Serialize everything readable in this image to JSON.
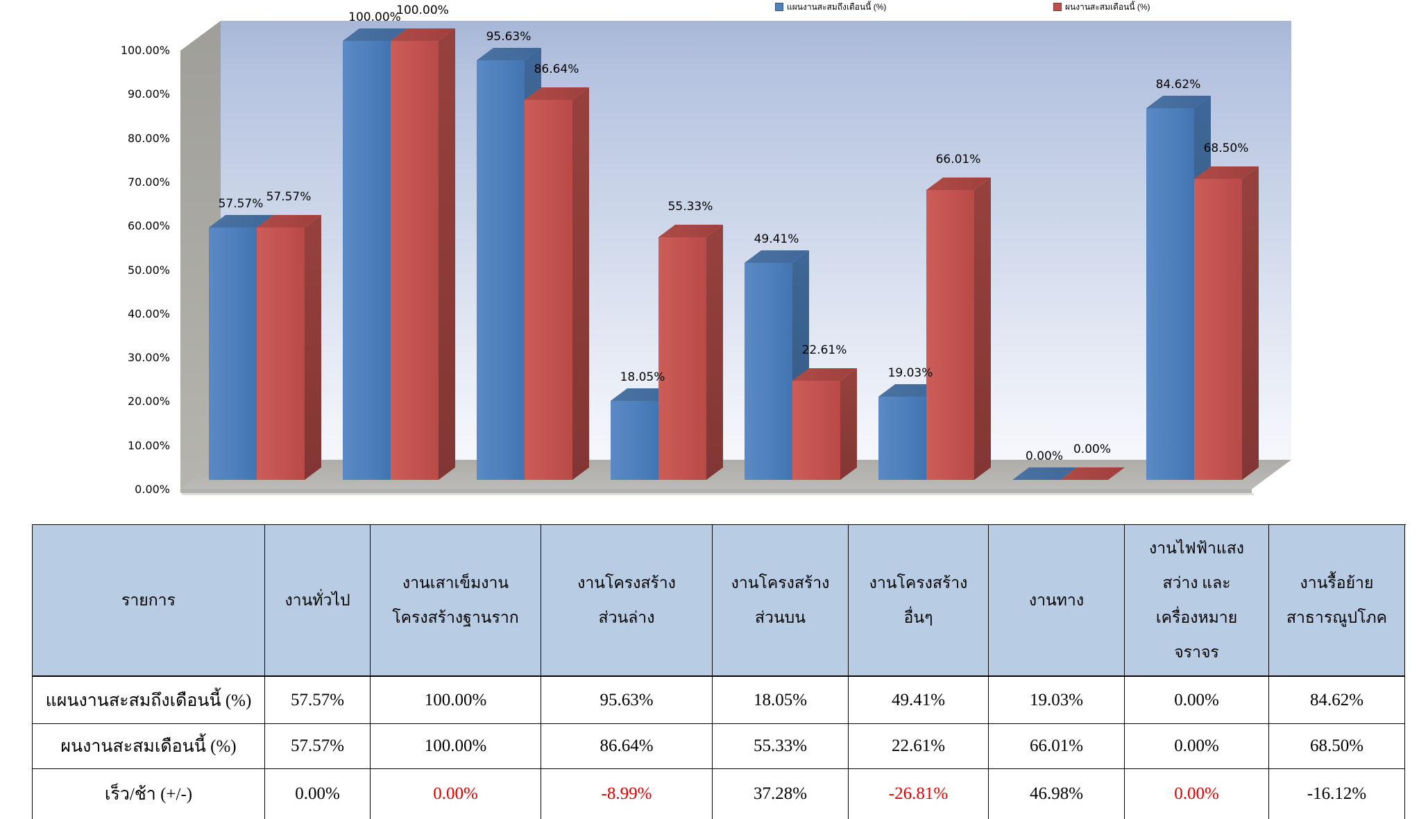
{
  "legend": {
    "items": [
      {
        "label": "แผนงานสะสมถึงเดือนนี้ (%)",
        "color": "#4f81bd"
      },
      {
        "label": "ผนงานสะสมเดือนนี้ (%)",
        "color": "#c0504d"
      }
    ]
  },
  "chart_data": {
    "type": "bar",
    "style": "3d-clustered-column",
    "title": "",
    "categories": [
      "งานทั่วไป",
      "งานเสาเข็มงานโครงสร้างฐานราก",
      "งานโครงสร้างส่วนล่าง",
      "งานโครงสร้างส่วนบน",
      "งานโครงสร้างอื่นๆ",
      "งานทาง",
      "งานไฟฟ้าแสงสว่าง และเครื่องหมายจราจร",
      "งานรื้อย้ายสาธารณูปโภค"
    ],
    "series": [
      {
        "name": "แผนงานสะสมถึงเดือนนี้ (%)",
        "color": "#4f81bd",
        "values": [
          57.57,
          100.0,
          95.63,
          18.05,
          49.41,
          19.03,
          0.0,
          84.62
        ],
        "labels": [
          "57.57%",
          "100.00%",
          "95.63%",
          "18.05%",
          "49.41%",
          "19.03%",
          "0.00%",
          "84.62%"
        ]
      },
      {
        "name": "ผนงานสะสมเดือนนี้ (%)",
        "color": "#c0504d",
        "values": [
          57.57,
          100.0,
          86.64,
          55.33,
          22.61,
          66.01,
          0.0,
          68.5
        ],
        "labels": [
          "57.57%",
          "100.00%",
          "86.64%",
          "55.33%",
          "22.61%",
          "66.01%",
          "0.00%",
          "68.50%"
        ]
      }
    ],
    "y_axis": {
      "min": 0,
      "max": 100,
      "step": 10,
      "tick_labels": [
        "0.00%",
        "10.00%",
        "20.00%",
        "30.00%",
        "40.00%",
        "50.00%",
        "60.00%",
        "70.00%",
        "80.00%",
        "90.00%",
        "100.00%"
      ]
    },
    "legend_position": "top",
    "grid": false,
    "wall_color": "#a5a4a0",
    "floor_color": "#b3b2ae",
    "back_wall_gradient": [
      "#a7b7d7",
      "#f6f7fc"
    ]
  },
  "table": {
    "header_bg": "#b8cce4",
    "negative_color": "#e00000",
    "corner_header": "รายการ",
    "column_headers": [
      [
        "งานทั่วไป"
      ],
      [
        "งานเสาเข็มงาน",
        "โครงสร้างฐานราก"
      ],
      [
        "งานโครงสร้าง",
        "ส่วนล่าง"
      ],
      [
        "งานโครงสร้าง",
        "ส่วนบน"
      ],
      [
        "งานโครงสร้าง",
        "อื่นๆ"
      ],
      [
        "งานทาง"
      ],
      [
        "งานไฟฟ้าแสง",
        "สว่าง และ",
        "เครื่องหมาย",
        "จราจร"
      ],
      [
        "งานรื้อย้าย",
        "สาธารณูปโภค"
      ]
    ],
    "rows": [
      {
        "label": "แผนงานสะสมถึงเดือนนี้ (%)",
        "values": [
          "57.57%",
          "100.00%",
          "95.63%",
          "18.05%",
          "49.41%",
          "19.03%",
          "0.00%",
          "84.62%"
        ],
        "red": [
          false,
          false,
          false,
          false,
          false,
          false,
          false,
          false
        ]
      },
      {
        "label": "ผนงานสะสมเดือนนี้ (%)",
        "values": [
          "57.57%",
          "100.00%",
          "86.64%",
          "55.33%",
          "22.61%",
          "66.01%",
          "0.00%",
          "68.50%"
        ],
        "red": [
          false,
          false,
          false,
          false,
          false,
          false,
          false,
          false
        ]
      },
      {
        "label": "เร็ว/ช้า (+/-)",
        "values": [
          "0.00%",
          "0.00%",
          "-8.99%",
          "37.28%",
          "-26.81%",
          "46.98%",
          "0.00%",
          "-16.12%"
        ],
        "red": [
          false,
          true,
          true,
          false,
          true,
          false,
          true,
          false
        ]
      }
    ]
  }
}
